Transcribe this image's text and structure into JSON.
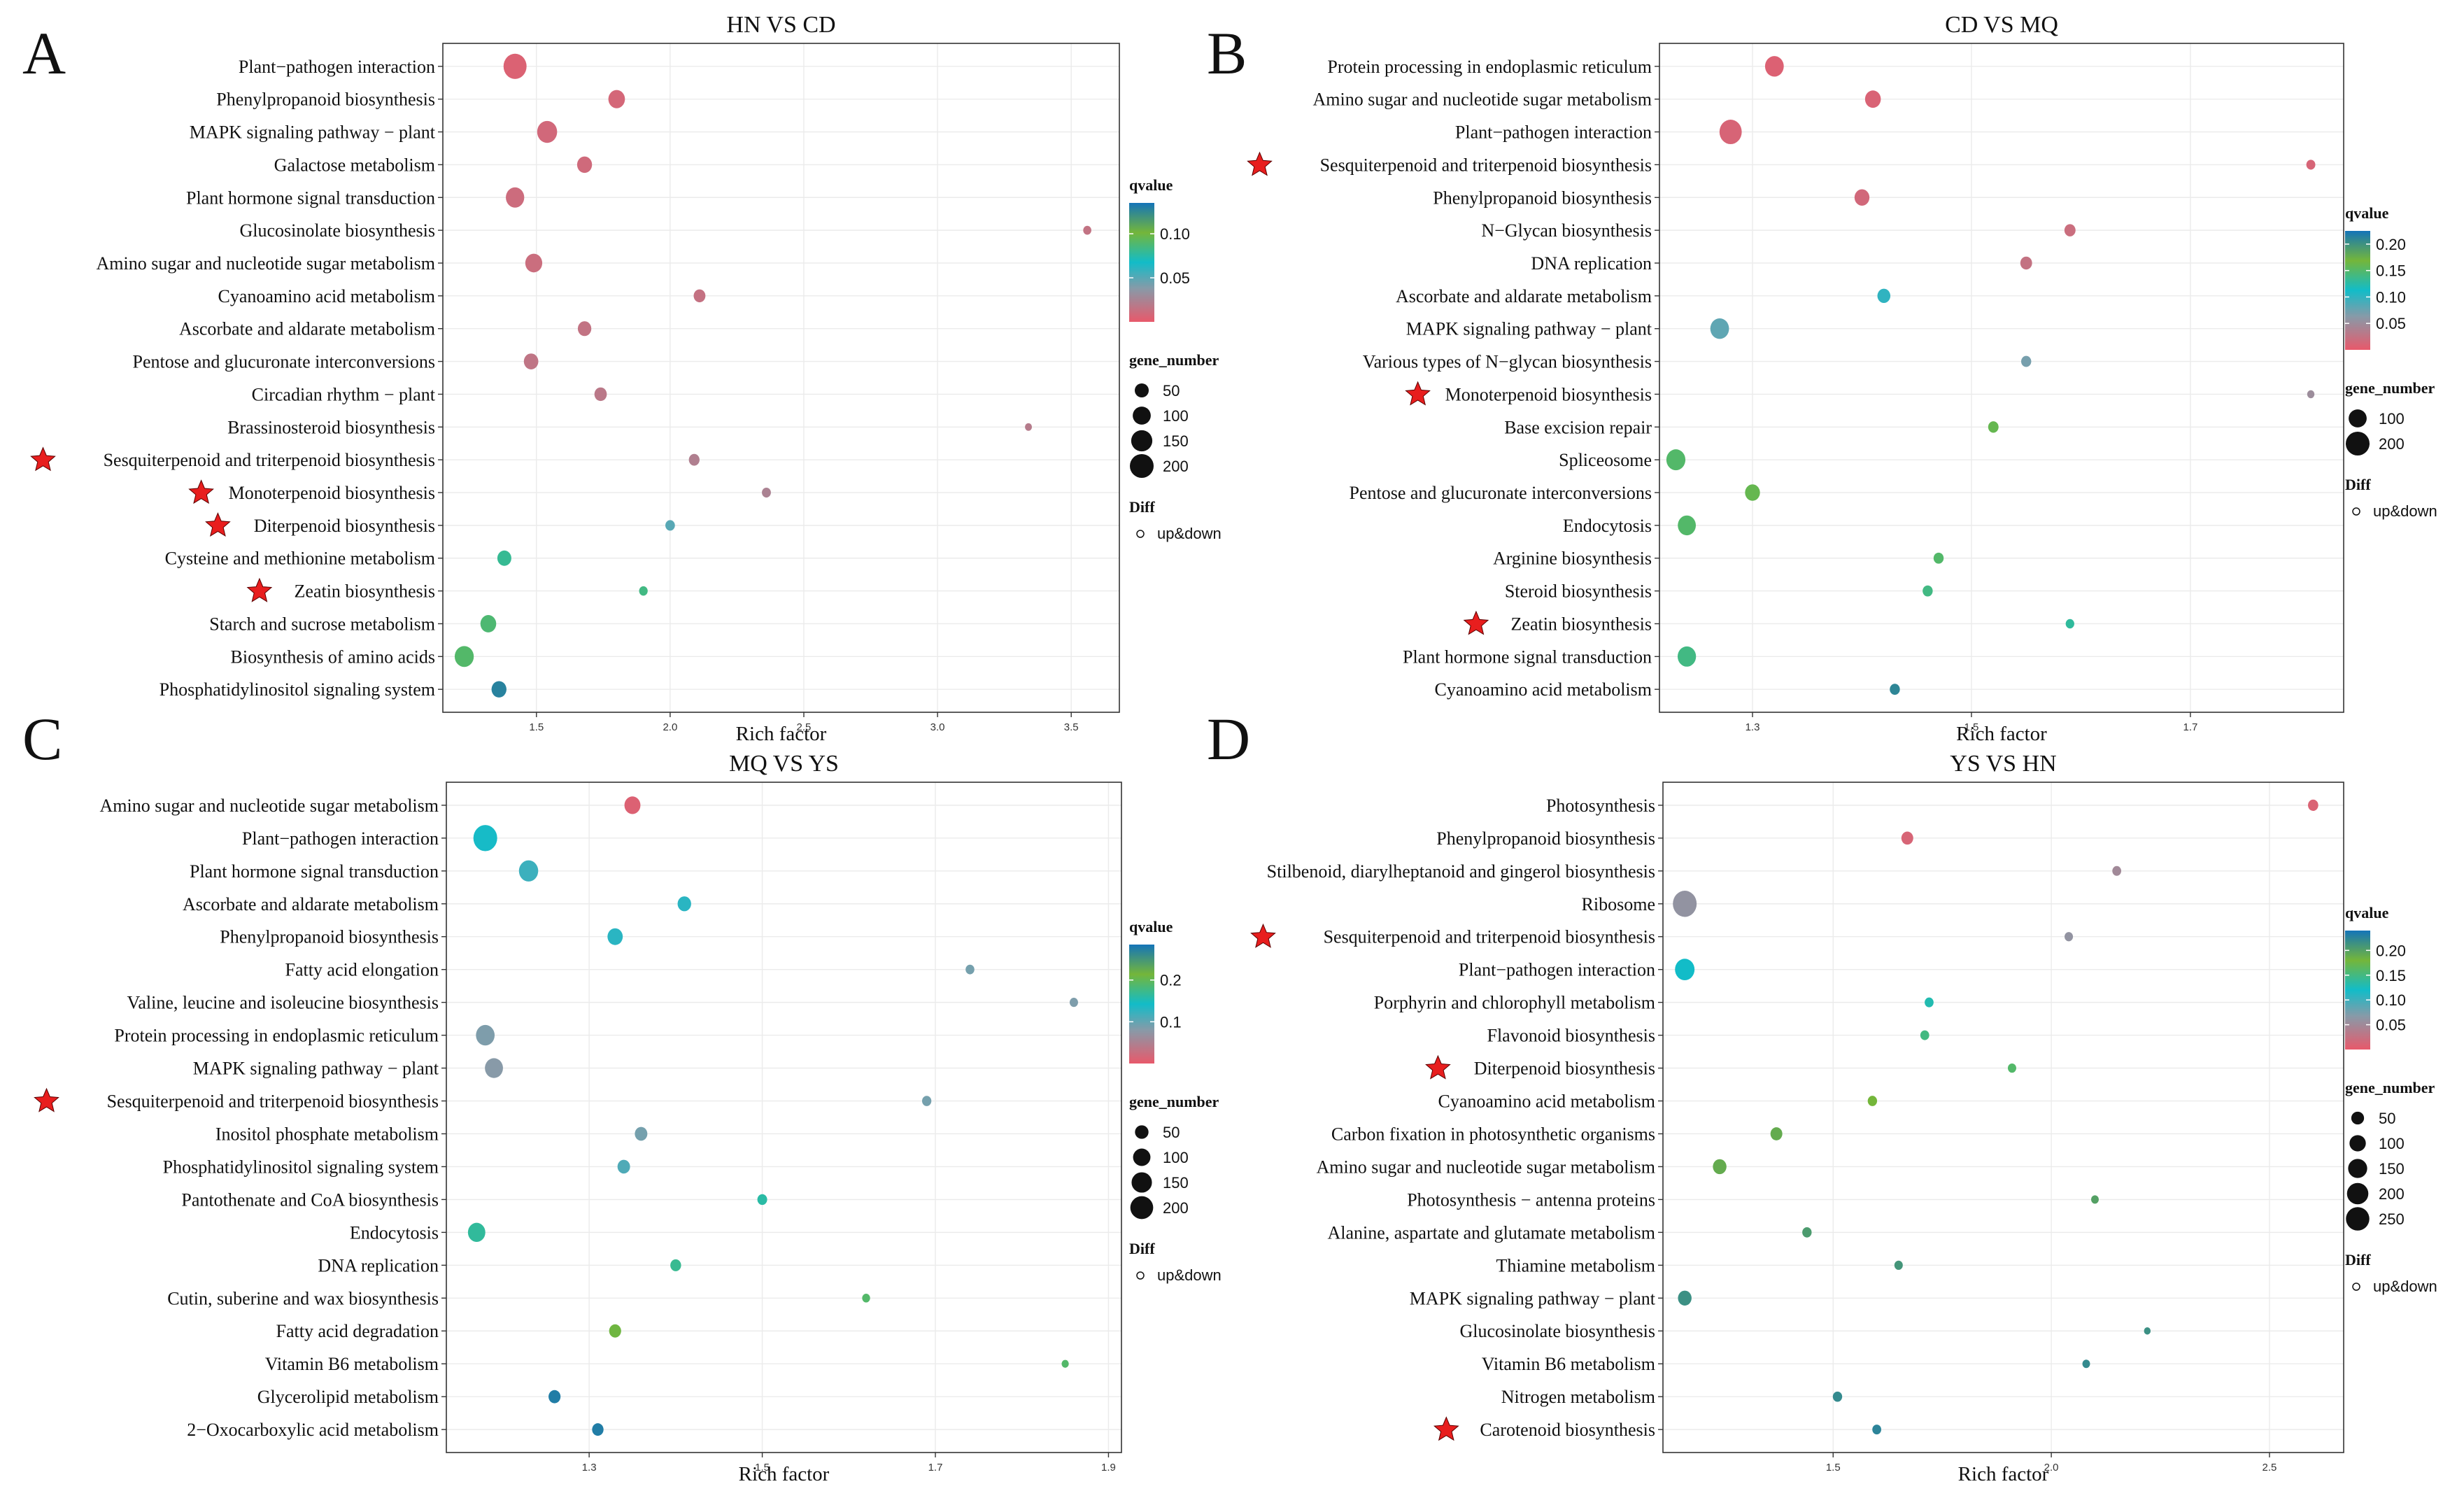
{
  "legend_text": {
    "qvalue": "qvalue",
    "gene_number": "gene_number",
    "diff": "Diff",
    "diff_entry": "up&down"
  },
  "chart_data": [
    {
      "type": "scatter",
      "panel": "A",
      "title": "HN VS CD",
      "xlabel": "Rich factor",
      "ylabel": "",
      "xlim": [
        1.15,
        3.68
      ],
      "xticks": [
        1.5,
        2.0,
        2.5,
        3.0,
        3.5
      ],
      "xtick_labels": [
        "1.5",
        "2.0",
        "2.5",
        "3.0",
        "3.5"
      ],
      "qvalue_range": [
        0.0,
        0.135
      ],
      "qvalue_ticks": [
        0.05,
        0.1
      ],
      "qvalue_tick_labels": [
        "0.05",
        "0.10"
      ],
      "size_legend": [
        50,
        100,
        150,
        200
      ],
      "terms": [
        "Plant−pathogen interaction",
        "Phenylpropanoid biosynthesis",
        "MAPK signaling pathway − plant",
        "Galactose metabolism",
        "Plant hormone signal transduction",
        "Glucosinolate biosynthesis",
        "Amino sugar and nucleotide sugar metabolism",
        "Cyanoamino acid metabolism",
        "Ascorbate and aldarate metabolism",
        "Pentose and glucuronate interconversions",
        "Circadian rhythm − plant",
        "Brassinosteroid biosynthesis",
        "Sesquiterpenoid and triterpenoid biosynthesis",
        "Monoterpenoid biosynthesis",
        "Diterpenoid biosynthesis",
        "Cysteine and methionine metabolism",
        "Zeatin biosynthesis",
        "Starch and sucrose metabolism",
        "Biosynthesis of amino acids",
        "Phosphatidylinositol signaling system"
      ],
      "rich_factor": [
        1.42,
        1.8,
        1.54,
        1.68,
        1.42,
        3.56,
        1.49,
        2.11,
        1.68,
        1.48,
        1.74,
        3.34,
        2.09,
        2.36,
        2.0,
        1.38,
        1.9,
        1.32,
        1.23,
        1.36
      ],
      "gene_number": [
        185,
        80,
        130,
        60,
        105,
        8,
        85,
        30,
        45,
        55,
        35,
        4,
        22,
        12,
        15,
        50,
        10,
        70,
        115,
        60
      ],
      "qvalue": [
        0.005,
        0.008,
        0.009,
        0.01,
        0.011,
        0.015,
        0.012,
        0.014,
        0.015,
        0.016,
        0.018,
        0.02,
        0.022,
        0.024,
        0.05,
        0.08,
        0.084,
        0.088,
        0.09,
        0.128
      ],
      "starred": [
        12,
        13,
        14,
        16
      ]
    },
    {
      "type": "scatter",
      "panel": "B",
      "title": "CD VS MQ",
      "xlabel": "Rich factor",
      "ylabel": "",
      "xlim": [
        1.215,
        1.84
      ],
      "xticks": [
        1.3,
        1.5,
        1.7
      ],
      "xtick_labels": [
        "1.3",
        "1.5",
        "1.7"
      ],
      "qvalue_range": [
        0.0,
        0.225
      ],
      "qvalue_ticks": [
        0.05,
        0.1,
        0.15,
        0.2
      ],
      "qvalue_tick_labels": [
        "0.05",
        "0.10",
        "0.15",
        "0.20"
      ],
      "size_legend": [
        100,
        200
      ],
      "terms": [
        "Protein processing in endoplasmic reticulum",
        "Amino sugar and nucleotide sugar metabolism",
        "Plant−pathogen interaction",
        "Sesquiterpenoid and triterpenoid biosynthesis",
        "Phenylpropanoid biosynthesis",
        "N−Glycan biosynthesis",
        "DNA replication",
        "Ascorbate and aldarate metabolism",
        "MAPK signaling pathway − plant",
        "Various types of N−glycan biosynthesis",
        "Monoterpenoid biosynthesis",
        "Base excision repair",
        "Spliceosome",
        "Pentose and glucuronate interconversions",
        "Endocytosis",
        "Arginine biosynthesis",
        "Steroid biosynthesis",
        "Zeatin biosynthesis",
        "Plant hormone signal transduction",
        "Cyanoamino acid metabolism"
      ],
      "rich_factor": [
        1.32,
        1.41,
        1.28,
        1.81,
        1.4,
        1.59,
        1.55,
        1.42,
        1.27,
        1.55,
        1.81,
        1.52,
        1.23,
        1.3,
        1.24,
        1.47,
        1.46,
        1.59,
        1.24,
        1.43
      ],
      "gene_number": [
        110,
        70,
        170,
        12,
        60,
        25,
        30,
        40,
        110,
        18,
        5,
        20,
        115,
        60,
        100,
        18,
        18,
        10,
        105,
        18
      ],
      "qvalue": [
        0.008,
        0.01,
        0.011,
        0.012,
        0.015,
        0.02,
        0.024,
        0.1,
        0.08,
        0.07,
        0.05,
        0.16,
        0.15,
        0.16,
        0.15,
        0.15,
        0.14,
        0.13,
        0.14,
        0.21
      ],
      "starred": [
        3,
        10,
        17
      ]
    },
    {
      "type": "scatter",
      "panel": "C",
      "title": "MQ VS YS",
      "xlabel": "Rich factor",
      "ylabel": "",
      "xlim": [
        1.135,
        1.915
      ],
      "xticks": [
        1.3,
        1.5,
        1.7,
        1.9
      ],
      "xtick_labels": [
        "1.3",
        "1.5",
        "1.7",
        "1.9"
      ],
      "qvalue_range": [
        0.0,
        0.285
      ],
      "qvalue_ticks": [
        0.1,
        0.2
      ],
      "qvalue_tick_labels": [
        "0.1",
        "0.2"
      ],
      "size_legend": [
        50,
        100,
        150,
        200
      ],
      "terms": [
        "Amino sugar and nucleotide sugar metabolism",
        "Plant−pathogen interaction",
        "Plant hormone signal transduction",
        "Ascorbate and aldarate metabolism",
        "Phenylpropanoid biosynthesis",
        "Fatty acid elongation",
        "Valine, leucine and isoleucine biosynthesis",
        "Protein processing in endoplasmic reticulum",
        "MAPK signaling pathway − plant",
        "Sesquiterpenoid and triterpenoid biosynthesis",
        "Inositol phosphate metabolism",
        "Phosphatidylinositol signaling system",
        "Pantothenate and CoA biosynthesis",
        "Endocytosis",
        "DNA replication",
        "Cutin, suberine and wax biosynthesis",
        "Fatty acid degradation",
        "Vitamin B6 metabolism",
        "Glycerolipid metabolism",
        "2−Oxocarboxylic acid metabolism"
      ],
      "rich_factor": [
        1.35,
        1.18,
        1.23,
        1.41,
        1.33,
        1.74,
        1.86,
        1.18,
        1.19,
        1.69,
        1.36,
        1.34,
        1.5,
        1.17,
        1.4,
        1.62,
        1.33,
        1.85,
        1.26,
        1.31
      ],
      "gene_number": [
        80,
        220,
        130,
        50,
        70,
        12,
        10,
        120,
        110,
        15,
        40,
        40,
        18,
        100,
        25,
        8,
        35,
        5,
        35,
        30
      ],
      "qvalue": [
        0.01,
        0.14,
        0.12,
        0.13,
        0.13,
        0.09,
        0.085,
        0.085,
        0.08,
        0.09,
        0.09,
        0.11,
        0.16,
        0.165,
        0.17,
        0.19,
        0.21,
        0.19,
        0.275,
        0.275
      ],
      "starred": [
        9
      ]
    },
    {
      "type": "scatter",
      "panel": "D",
      "title": "YS VS HN",
      "xlabel": "Rich factor",
      "ylabel": "",
      "xlim": [
        1.11,
        2.67
      ],
      "xticks": [
        1.5,
        2.0,
        2.5
      ],
      "xtick_labels": [
        "1.5",
        "2.0",
        "2.5"
      ],
      "qvalue_range": [
        0.0,
        0.24
      ],
      "qvalue_ticks": [
        0.05,
        0.1,
        0.15,
        0.2
      ],
      "qvalue_tick_labels": [
        "0.05",
        "0.10",
        "0.15",
        "0.20"
      ],
      "size_legend": [
        50,
        100,
        150,
        200,
        250
      ],
      "terms": [
        "Photosynthesis",
        "Phenylpropanoid biosynthesis",
        "Stilbenoid, diarylheptanoid and gingerol biosynthesis",
        "Ribosome",
        "Sesquiterpenoid and triterpenoid biosynthesis",
        "Plant−pathogen interaction",
        "Porphyrin and chlorophyll metabolism",
        "Flavonoid biosynthesis",
        "Diterpenoid biosynthesis",
        "Cyanoamino acid metabolism",
        "Carbon fixation in photosynthetic organisms",
        "Amino sugar and nucleotide sugar metabolism",
        "Photosynthesis − antenna proteins",
        "Alanine, aspartate and glutamate metabolism",
        "Thiamine metabolism",
        "MAPK signaling pathway − plant",
        "Glucosinolate biosynthesis",
        "Vitamin B6 metabolism",
        "Nitrogen metabolism",
        "Carotenoid biosynthesis"
      ],
      "rich_factor": [
        2.6,
        1.67,
        2.15,
        1.16,
        2.04,
        1.16,
        1.72,
        1.71,
        1.91,
        1.59,
        1.37,
        1.24,
        2.1,
        1.44,
        1.65,
        1.16,
        2.22,
        2.08,
        1.51,
        1.6
      ],
      "gene_number": [
        25,
        40,
        15,
        260,
        12,
        160,
        15,
        15,
        12,
        18,
        40,
        60,
        8,
        18,
        12,
        60,
        4,
        8,
        18,
        15
      ],
      "qvalue": [
        0.01,
        0.012,
        0.05,
        0.06,
        0.06,
        0.12,
        0.13,
        0.15,
        0.16,
        0.18,
        0.19,
        0.19,
        0.2,
        0.205,
        0.21,
        0.215,
        0.215,
        0.22,
        0.22,
        0.225
      ],
      "starred": [
        4,
        8,
        19
      ]
    }
  ]
}
